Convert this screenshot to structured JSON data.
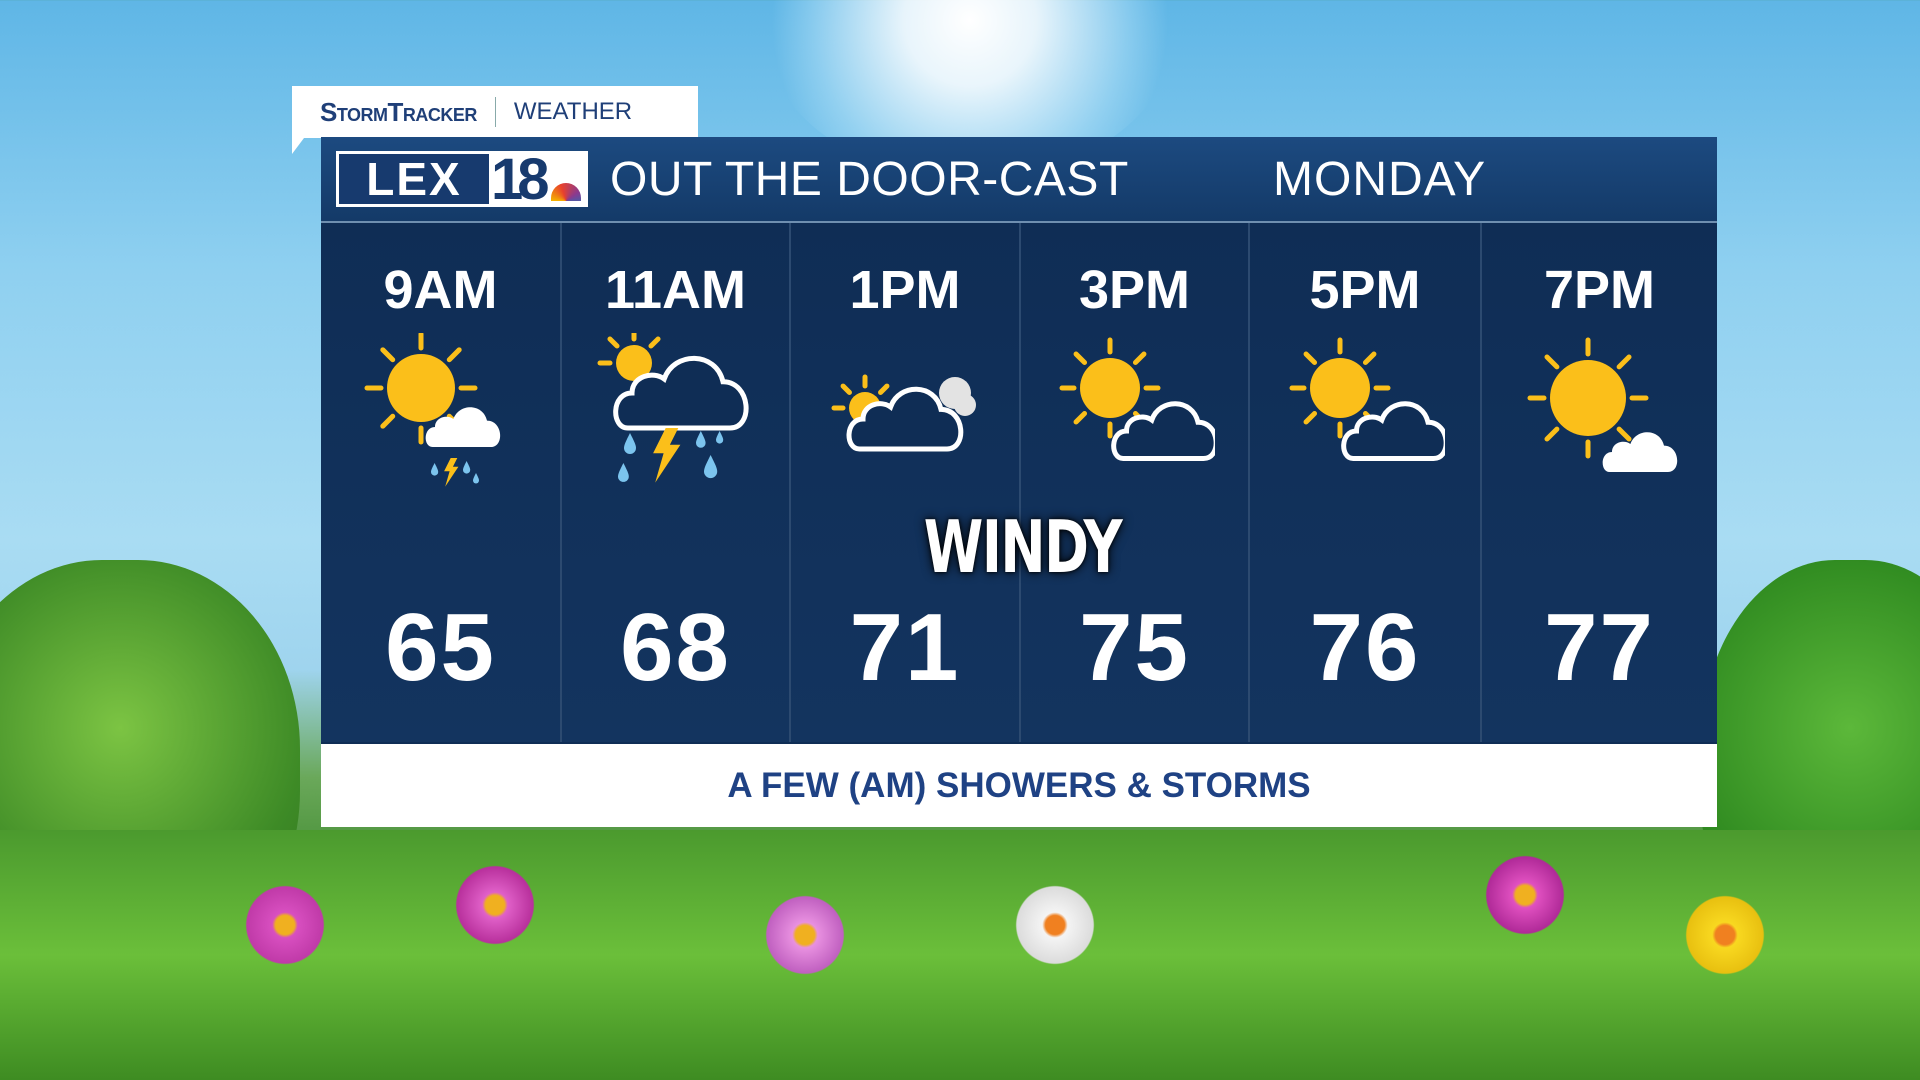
{
  "tab": {
    "brand": "StormTracker",
    "section": "WEATHER"
  },
  "header": {
    "logo": "LEX18",
    "title": "OUT THE DOOR-CAST",
    "day": "MONDAY"
  },
  "forecast": [
    {
      "time": "9AM",
      "icon": "sun-with-storm-cloud",
      "temp": "65"
    },
    {
      "time": "11AM",
      "icon": "thunderstorm-rain",
      "temp": "68"
    },
    {
      "time": "1PM",
      "icon": "mostly-cloudy",
      "temp": "71"
    },
    {
      "time": "3PM",
      "icon": "partly-cloudy",
      "temp": "75"
    },
    {
      "time": "5PM",
      "icon": "partly-cloudy",
      "temp": "76"
    },
    {
      "time": "7PM",
      "icon": "mostly-sunny",
      "temp": "77"
    }
  ],
  "annotation": "WINDY",
  "summary": "A FEW (AM) SHOWERS & STORMS",
  "colors": {
    "panel": "#0f2d55",
    "header": "#1c4a80",
    "sun": "#fbbf1a",
    "rain": "#7cc4ee",
    "summary_text": "#1f4284"
  }
}
